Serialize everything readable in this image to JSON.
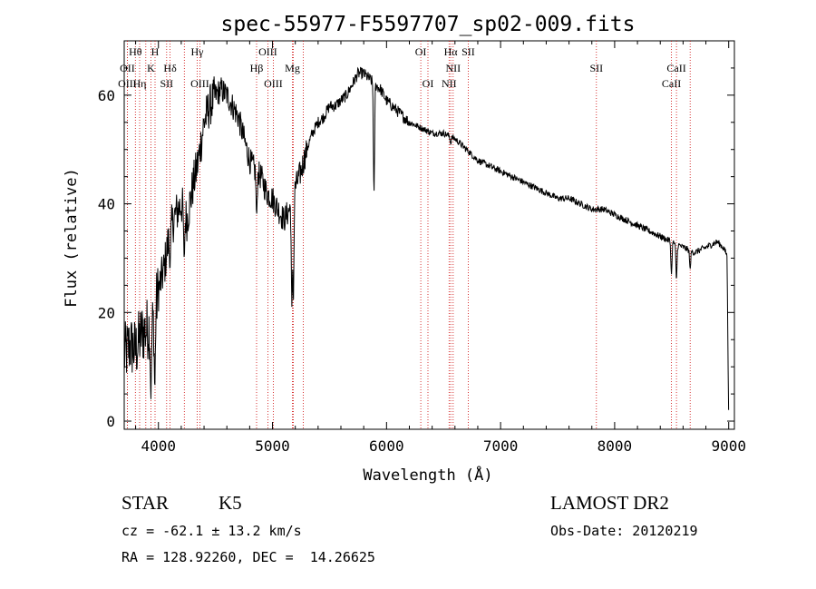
{
  "chart_data": {
    "type": "line",
    "title": "spec-55977-F5597707_sp02-009.fits",
    "xlabel": "Wavelength (Å)",
    "ylabel": "Flux (relative)",
    "xlim": [
      3700,
      9050
    ],
    "ylim": [
      -1.5,
      70
    ],
    "x_ticks": [
      4000,
      5000,
      6000,
      7000,
      8000,
      9000
    ],
    "y_ticks": [
      0,
      20,
      40,
      60
    ],
    "line_color": "#000000",
    "marker_line_color": "#cc0000",
    "spectrum_envelope": {
      "description": "continuum points, flux in relative units",
      "x": [
        3700,
        3750,
        3800,
        3850,
        3900,
        3950,
        4000,
        4050,
        4100,
        4150,
        4200,
        4250,
        4300,
        4350,
        4400,
        4450,
        4500,
        4550,
        4600,
        4650,
        4700,
        4750,
        4800,
        4850,
        4900,
        4950,
        5000,
        5050,
        5100,
        5150,
        5200,
        5250,
        5300,
        5350,
        5400,
        5450,
        5500,
        5550,
        5600,
        5650,
        5700,
        5750,
        5800,
        5850,
        5900,
        5950,
        6000,
        6100,
        6200,
        6300,
        6400,
        6500,
        6600,
        6700,
        6800,
        6900,
        7000,
        7100,
        7200,
        7300,
        7400,
        7500,
        7600,
        7700,
        7800,
        7900,
        8000,
        8100,
        8200,
        8300,
        8400,
        8500,
        8600,
        8700,
        8800,
        8900,
        8950,
        9000
      ],
      "y": [
        12,
        14,
        13,
        16,
        17,
        18,
        24,
        28,
        35,
        38,
        40,
        37,
        43,
        48,
        55,
        58,
        60,
        61,
        60,
        58,
        56,
        52,
        48,
        46,
        45,
        42,
        41,
        39,
        37,
        39,
        43,
        46,
        50,
        53,
        55,
        56,
        58,
        58,
        59,
        60,
        62,
        64,
        64,
        63,
        62,
        61,
        59,
        57,
        55,
        54,
        53,
        53,
        52,
        50,
        48,
        47,
        46,
        45,
        44,
        43,
        42,
        41,
        41,
        40,
        39,
        39,
        38,
        37,
        36,
        35,
        34,
        33,
        32,
        31,
        32,
        33,
        32,
        30
      ]
    },
    "absorption_dips": [
      {
        "x": 3934,
        "y": 4
      },
      {
        "x": 3968,
        "y": 6
      },
      {
        "x": 4101,
        "y": 28
      },
      {
        "x": 4226,
        "y": 30
      },
      {
        "x": 4861,
        "y": 38
      },
      {
        "x": 5170,
        "y": 21
      },
      {
        "x": 5183,
        "y": 22
      },
      {
        "x": 5890,
        "y": 42
      },
      {
        "x": 6563,
        "y": 51
      },
      {
        "x": 8498,
        "y": 27
      },
      {
        "x": 8542,
        "y": 26
      },
      {
        "x": 8662,
        "y": 28
      }
    ],
    "line_markers": [
      {
        "label": "Hθ",
        "x": 3798,
        "row": 0
      },
      {
        "label": "H",
        "x": 3970,
        "row": 0
      },
      {
        "label": "Hγ",
        "x": 4340,
        "row": 0
      },
      {
        "label": "OIII",
        "x": 4959,
        "row": 0
      },
      {
        "label": "OI",
        "x": 6300,
        "row": 0
      },
      {
        "label": "Hα",
        "x": 6563,
        "row": 0
      },
      {
        "label": "SII",
        "x": 6716,
        "row": 0
      },
      {
        "label": "OII",
        "x": 3727,
        "row": 1
      },
      {
        "label": "K",
        "x": 3934,
        "row": 1
      },
      {
        "label": "Hδ",
        "x": 4102,
        "row": 1
      },
      {
        "label": "Hβ",
        "x": 4861,
        "row": 1
      },
      {
        "label": "Mg",
        "x": 5175,
        "row": 1
      },
      {
        "label": "NII",
        "x": 6584,
        "row": 1
      },
      {
        "label": "SII",
        "x": 7840,
        "row": 1
      },
      {
        "label": "CaII",
        "x": 8542,
        "row": 1
      },
      {
        "label": "OIII",
        "x": 3727,
        "row": 2
      },
      {
        "label": "Hη",
        "x": 3835,
        "row": 2
      },
      {
        "label": "SII",
        "x": 4072,
        "row": 2
      },
      {
        "label": "OIII",
        "x": 4363,
        "row": 2
      },
      {
        "label": "OIII",
        "x": 5007,
        "row": 2
      },
      {
        "label": "OI",
        "x": 6363,
        "row": 2
      },
      {
        "label": "NII",
        "x": 6548,
        "row": 2
      },
      {
        "label": "CaII",
        "x": 8498,
        "row": 2
      }
    ],
    "extra_marker_lines": [
      3889,
      4227,
      5183,
      5270,
      8662
    ]
  },
  "info": {
    "object_class": "STAR",
    "subclass": "K5",
    "survey": "LAMOST DR2",
    "cz_line": "cz = -62.1 ± 13.2 km/s",
    "obs_date": "Obs-Date: 20120219",
    "coords": "RA = 128.92260, DEC =  14.26625"
  }
}
